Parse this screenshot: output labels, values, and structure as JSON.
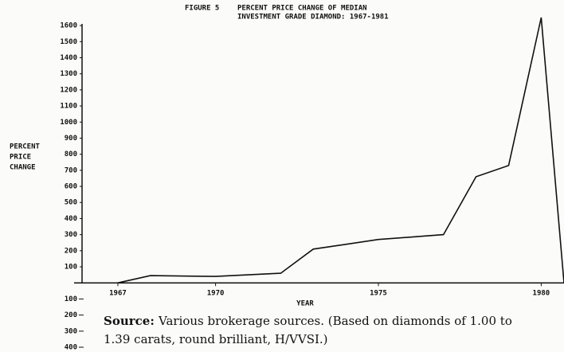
{
  "chart_data": {
    "type": "line",
    "title": "FIGURE 5",
    "subtitle": [
      "PERCENT PRICE CHANGE OF MEDIAN",
      "INVESTMENT GRADE DIAMOND:  1967-1981"
    ],
    "y_label": [
      "PERCENT",
      "PRICE",
      "CHANGE"
    ],
    "x_label": "YEAR",
    "x": [
      1967,
      1968,
      1970,
      1972,
      1973,
      1974,
      1975,
      1976,
      1977,
      1978,
      1979,
      1980,
      1980.7
    ],
    "series": [
      {
        "name": "Percent price change",
        "color": "#111111",
        "values": [
          0,
          45,
          40,
          60,
          210,
          240,
          270,
          285,
          300,
          660,
          730,
          1650,
          0
        ]
      }
    ],
    "xlim": [
      1965.9,
      1980.7
    ],
    "xticks": [
      1967,
      1970,
      1975,
      1980
    ],
    "ylim": [
      -400,
      1650
    ],
    "yticks": [
      {
        "value": -400,
        "label": "400"
      },
      {
        "value": -300,
        "label": "300"
      },
      {
        "value": -200,
        "label": "200"
      },
      {
        "value": -100,
        "label": "100"
      },
      100,
      200,
      300,
      400,
      500,
      600,
      700,
      800,
      900,
      1000,
      1100,
      1200,
      1300,
      1400,
      1500,
      1600
    ],
    "source": {
      "label": "Source:",
      "lines": [
        "Various brokerage sources. (Based on diamonds of 1.00 to",
        "1.39 carats, round brilliant, H/VVSI.)"
      ]
    }
  }
}
